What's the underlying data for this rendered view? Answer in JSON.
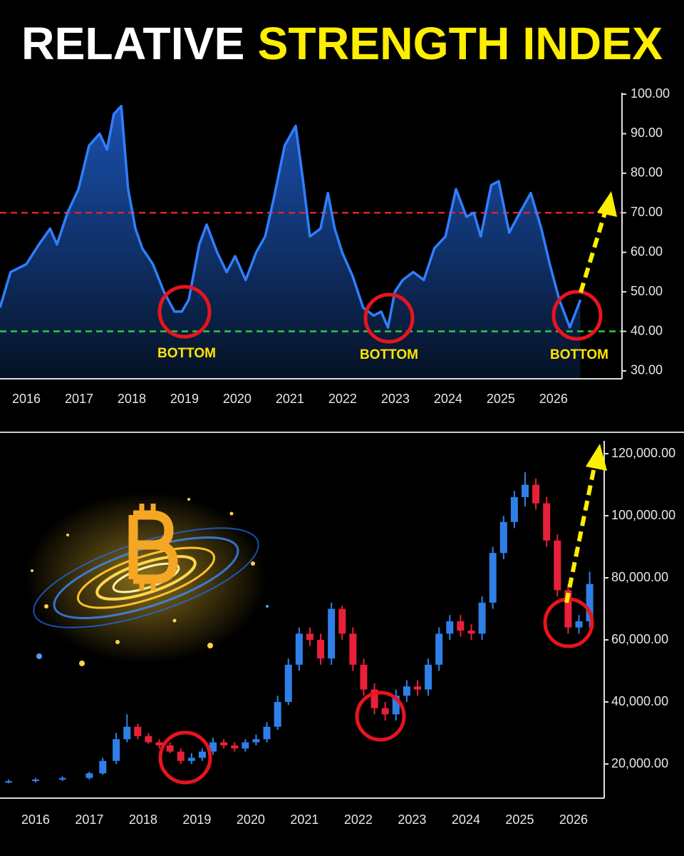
{
  "title": [
    "RELATIVE",
    "STRENGTH INDEX"
  ],
  "chart_data": [
    {
      "type": "line",
      "x": [
        2015.5,
        2015.7,
        2016.0,
        2016.24,
        2016.45,
        2016.58,
        2016.78,
        2016.99,
        2017.19,
        2017.39,
        2017.53,
        2017.66,
        2017.8,
        2017.93,
        2018.07,
        2018.2,
        2018.4,
        2018.61,
        2018.81,
        2018.95,
        2019.08,
        2019.28,
        2019.42,
        2019.62,
        2019.8,
        2019.96,
        2020.16,
        2020.36,
        2020.53,
        2020.7,
        2020.9,
        2021.11,
        2021.24,
        2021.38,
        2021.58,
        2021.72,
        2021.85,
        2021.99,
        2022.19,
        2022.39,
        2022.59,
        2022.73,
        2022.86,
        2022.99,
        2023.14,
        2023.34,
        2023.54,
        2023.74,
        2023.95,
        2024.15,
        2024.35,
        2024.49,
        2024.62,
        2024.82,
        2024.96,
        2025.16,
        2025.36,
        2025.57,
        2025.77,
        2025.93,
        2026.11,
        2026.31,
        2026.51
      ],
      "values": [
        46,
        55,
        57,
        62,
        66,
        62,
        70,
        76,
        87,
        90,
        86,
        95,
        97,
        76,
        66,
        61,
        57,
        50,
        45,
        45,
        48,
        62,
        67,
        60,
        55,
        59,
        53,
        60,
        64,
        74,
        87,
        92,
        79,
        64,
        66,
        75,
        66,
        60,
        54,
        46,
        44,
        45,
        41,
        50,
        53,
        55,
        53,
        61,
        64,
        76,
        69,
        70,
        64,
        77,
        78,
        65,
        70,
        75,
        66,
        57,
        48,
        41,
        48
      ],
      "color": "#2f7fff",
      "xlim": [
        2015.5,
        2027.3
      ],
      "xticks": [
        2016,
        2017,
        2018,
        2019,
        2020,
        2021,
        2022,
        2023,
        2024,
        2025,
        2026
      ],
      "ylim": [
        28,
        102
      ],
      "yticks": [
        {
          "value": 30,
          "label": "30.00"
        },
        {
          "value": 40,
          "label": "40.00"
        },
        {
          "value": 50,
          "label": "50.00"
        },
        {
          "value": 60,
          "label": "60.00"
        },
        {
          "value": 70,
          "label": "70.00"
        },
        {
          "value": 80,
          "label": "80.00"
        },
        {
          "value": 90,
          "label": "90.00"
        },
        {
          "value": 100,
          "label": "100.00"
        }
      ],
      "reference_lines": [
        {
          "value": 70,
          "color": "#e0202a"
        },
        {
          "value": 40,
          "color": "#2ecc40"
        }
      ],
      "annotations": [
        "BOTTOM",
        "BOTTOM",
        "BOTTOM"
      ]
    },
    {
      "type": "candlestick",
      "x": [
        2015.5,
        2016.0,
        2016.5,
        2017.0,
        2017.25,
        2017.5,
        2017.7,
        2017.9,
        2018.1,
        2018.3,
        2018.5,
        2018.7,
        2018.9,
        2019.1,
        2019.3,
        2019.5,
        2019.7,
        2019.9,
        2020.1,
        2020.3,
        2020.5,
        2020.7,
        2020.9,
        2021.1,
        2021.3,
        2021.5,
        2021.7,
        2021.9,
        2022.1,
        2022.3,
        2022.5,
        2022.7,
        2022.9,
        2023.1,
        2023.3,
        2023.5,
        2023.7,
        2023.9,
        2024.1,
        2024.3,
        2024.5,
        2024.7,
        2024.9,
        2025.1,
        2025.3,
        2025.5,
        2025.7,
        2025.9,
        2026.1,
        2026.3
      ],
      "open": [
        14200,
        14500,
        15000,
        15500,
        17000,
        21000,
        28000,
        32000,
        29000,
        27000,
        26000,
        24000,
        21000,
        22000,
        24000,
        27000,
        26000,
        25000,
        27000,
        28000,
        32000,
        40000,
        52000,
        62000,
        60000,
        54000,
        70000,
        62000,
        52000,
        44000,
        38000,
        36000,
        42000,
        45000,
        44000,
        52000,
        62000,
        66000,
        63000,
        62000,
        72000,
        88000,
        98000,
        106000,
        110000,
        104000,
        92000,
        76000,
        64000,
        66000
      ],
      "high": [
        15000,
        15500,
        16000,
        17500,
        22000,
        30000,
        36000,
        33000,
        30000,
        28000,
        27000,
        25000,
        23500,
        25000,
        28500,
        28000,
        27000,
        28000,
        29500,
        33500,
        42000,
        54000,
        64000,
        64000,
        62000,
        72000,
        71000,
        64000,
        54000,
        46000,
        40000,
        44000,
        47000,
        47000,
        54000,
        64000,
        68000,
        68000,
        65000,
        74000,
        90000,
        100000,
        108000,
        114000,
        112000,
        106000,
        94000,
        78000,
        68000,
        82000
      ],
      "low": [
        13800,
        14000,
        14500,
        15000,
        16500,
        20000,
        27000,
        28000,
        26500,
        25000,
        23500,
        20000,
        20000,
        21000,
        23000,
        25000,
        24000,
        24000,
        26000,
        27000,
        31000,
        39000,
        50000,
        58000,
        52000,
        52000,
        60000,
        50000,
        42000,
        36000,
        34000,
        34000,
        40000,
        42000,
        42000,
        50000,
        60000,
        61000,
        60000,
        60000,
        70000,
        86000,
        96000,
        103000,
        102000,
        90000,
        74000,
        62000,
        62000,
        64000
      ],
      "close": [
        14500,
        15000,
        15500,
        17000,
        21000,
        28000,
        32000,
        29000,
        27000,
        26000,
        24000,
        21000,
        22000,
        24000,
        27000,
        26000,
        25000,
        27000,
        28000,
        32000,
        40000,
        52000,
        62000,
        60000,
        54000,
        70000,
        62000,
        52000,
        44000,
        38000,
        36000,
        42000,
        45000,
        44000,
        52000,
        62000,
        66000,
        63000,
        62000,
        72000,
        88000,
        98000,
        106000,
        110000,
        104000,
        92000,
        76000,
        64000,
        66000,
        78000
      ],
      "up_color": "#2f7fe8",
      "down_color": "#e8203a",
      "xlim": [
        2015.34,
        2026.57
      ],
      "xticks": [
        2016,
        2017,
        2018,
        2019,
        2020,
        2021,
        2022,
        2023,
        2024,
        2025,
        2026
      ],
      "ylim": [
        9000,
        124000
      ],
      "yticks": [
        {
          "value": 20000,
          "label": "20,000.00"
        },
        {
          "value": 40000,
          "label": "40,000.00"
        },
        {
          "value": 60000,
          "label": "60,000.00"
        },
        {
          "value": 80000,
          "label": "80,000.00"
        },
        {
          "value": 100000,
          "label": "100,000.00"
        },
        {
          "value": 120000,
          "label": "120,000.00"
        }
      ]
    }
  ]
}
